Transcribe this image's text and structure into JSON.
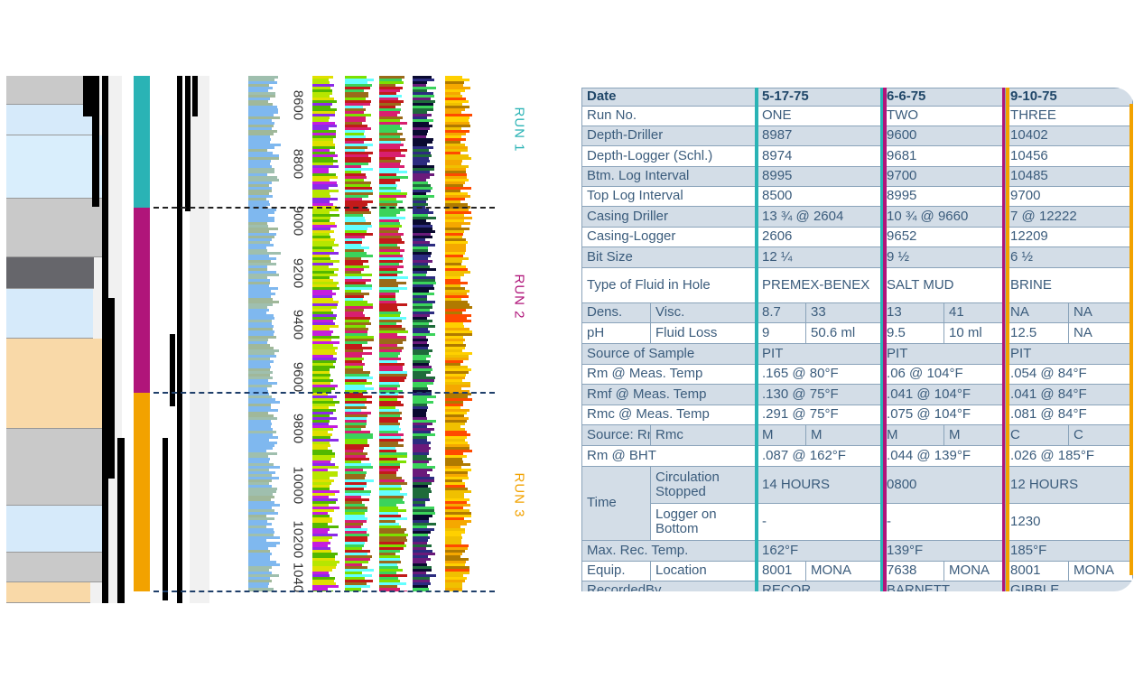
{
  "log": {
    "depth_labels": [
      "8600",
      "8800",
      "9000",
      "9200",
      "9400",
      "9600",
      "9800",
      "10000",
      "10200",
      "1040"
    ],
    "runs": [
      {
        "label": "RUN 1",
        "color": "#2ab3b5"
      },
      {
        "label": "RUN 2",
        "color": "#b0157a"
      },
      {
        "label": "RUN 3",
        "color": "#f2a200"
      }
    ]
  },
  "table": {
    "rows": [
      {
        "cells": [
          "Date",
          "5-17-75",
          "6-6-75",
          "9-10-75"
        ]
      },
      {
        "cells": [
          "Run No.",
          "ONE",
          "TWO",
          "THREE"
        ]
      },
      {
        "cells": [
          "Depth-Driller",
          "8987",
          "9600",
          "10402"
        ]
      },
      {
        "cells": [
          "Depth-Logger (Schl.)",
          "8974",
          "9681",
          "10456"
        ]
      },
      {
        "cells": [
          "Btm. Log Interval",
          "8995",
          "9700",
          "10485"
        ]
      },
      {
        "cells": [
          "Top Log Interval",
          "8500",
          "8995",
          "9700"
        ]
      },
      {
        "cells": [
          "Casing Driller",
          "13 ¾ @ 2604",
          "10 ¾ @ 9660",
          "7 @ 12222"
        ]
      },
      {
        "cells": [
          "Casing-Logger",
          "2606",
          "9652",
          "12209"
        ]
      },
      {
        "cells": [
          "Bit Size",
          "12 ¼",
          "9 ½",
          "6 ½"
        ]
      },
      {
        "cells": [
          "Type of Fluid in Hole",
          "PREMEX-BENEX",
          "SALT MUD",
          "BRINE"
        ]
      },
      {
        "cells": [
          "Dens.",
          "Visc.",
          "8.7",
          "33",
          "13",
          "41",
          "NA",
          "NA"
        ]
      },
      {
        "cells": [
          "pH",
          "Fluid Loss",
          "9",
          "50.6 ml",
          "9.5",
          "10 ml",
          "12.5",
          "NA"
        ]
      },
      {
        "cells": [
          "Source of Sample",
          "PIT",
          "PIT",
          "PIT"
        ]
      },
      {
        "cells": [
          "Rm @ Meas. Temp",
          ".165 @ 80°F",
          ".06 @ 104°F",
          ".054 @ 84°F"
        ]
      },
      {
        "cells": [
          "Rmf @ Meas. Temp",
          ".130 @ 75°F",
          ".041 @ 104°F",
          ".041 @ 84°F"
        ]
      },
      {
        "cells": [
          "Rmc @ Meas. Temp",
          ".291 @ 75°F",
          ".075 @ 104°F",
          ".081 @ 84°F"
        ]
      },
      {
        "cells": [
          "Source: Rmf",
          "Rmc",
          "M",
          "M",
          "M",
          "M",
          "C",
          "C"
        ]
      },
      {
        "cells": [
          "Rm @ BHT",
          ".087 @ 162°F",
          ".044 @ 139°F",
          ".026 @ 185°F"
        ]
      },
      {
        "cells": [
          "Time",
          "Circulation Stopped",
          "14 HOURS",
          "0800",
          "12 HOURS"
        ]
      },
      {
        "cells": [
          "Logger on Bottom",
          "-",
          "-",
          "1230"
        ]
      },
      {
        "cells": [
          "Max. Rec. Temp.",
          "162°F",
          "139°F",
          "185°F"
        ]
      },
      {
        "cells": [
          "Equip.",
          "Location",
          "8001",
          "MONA",
          "7638",
          "MONA",
          "8001",
          "MONA"
        ]
      },
      {
        "cells": [
          "RecordedBy",
          "RECOR",
          "BARNETT",
          "GIBBLE"
        ]
      }
    ]
  }
}
